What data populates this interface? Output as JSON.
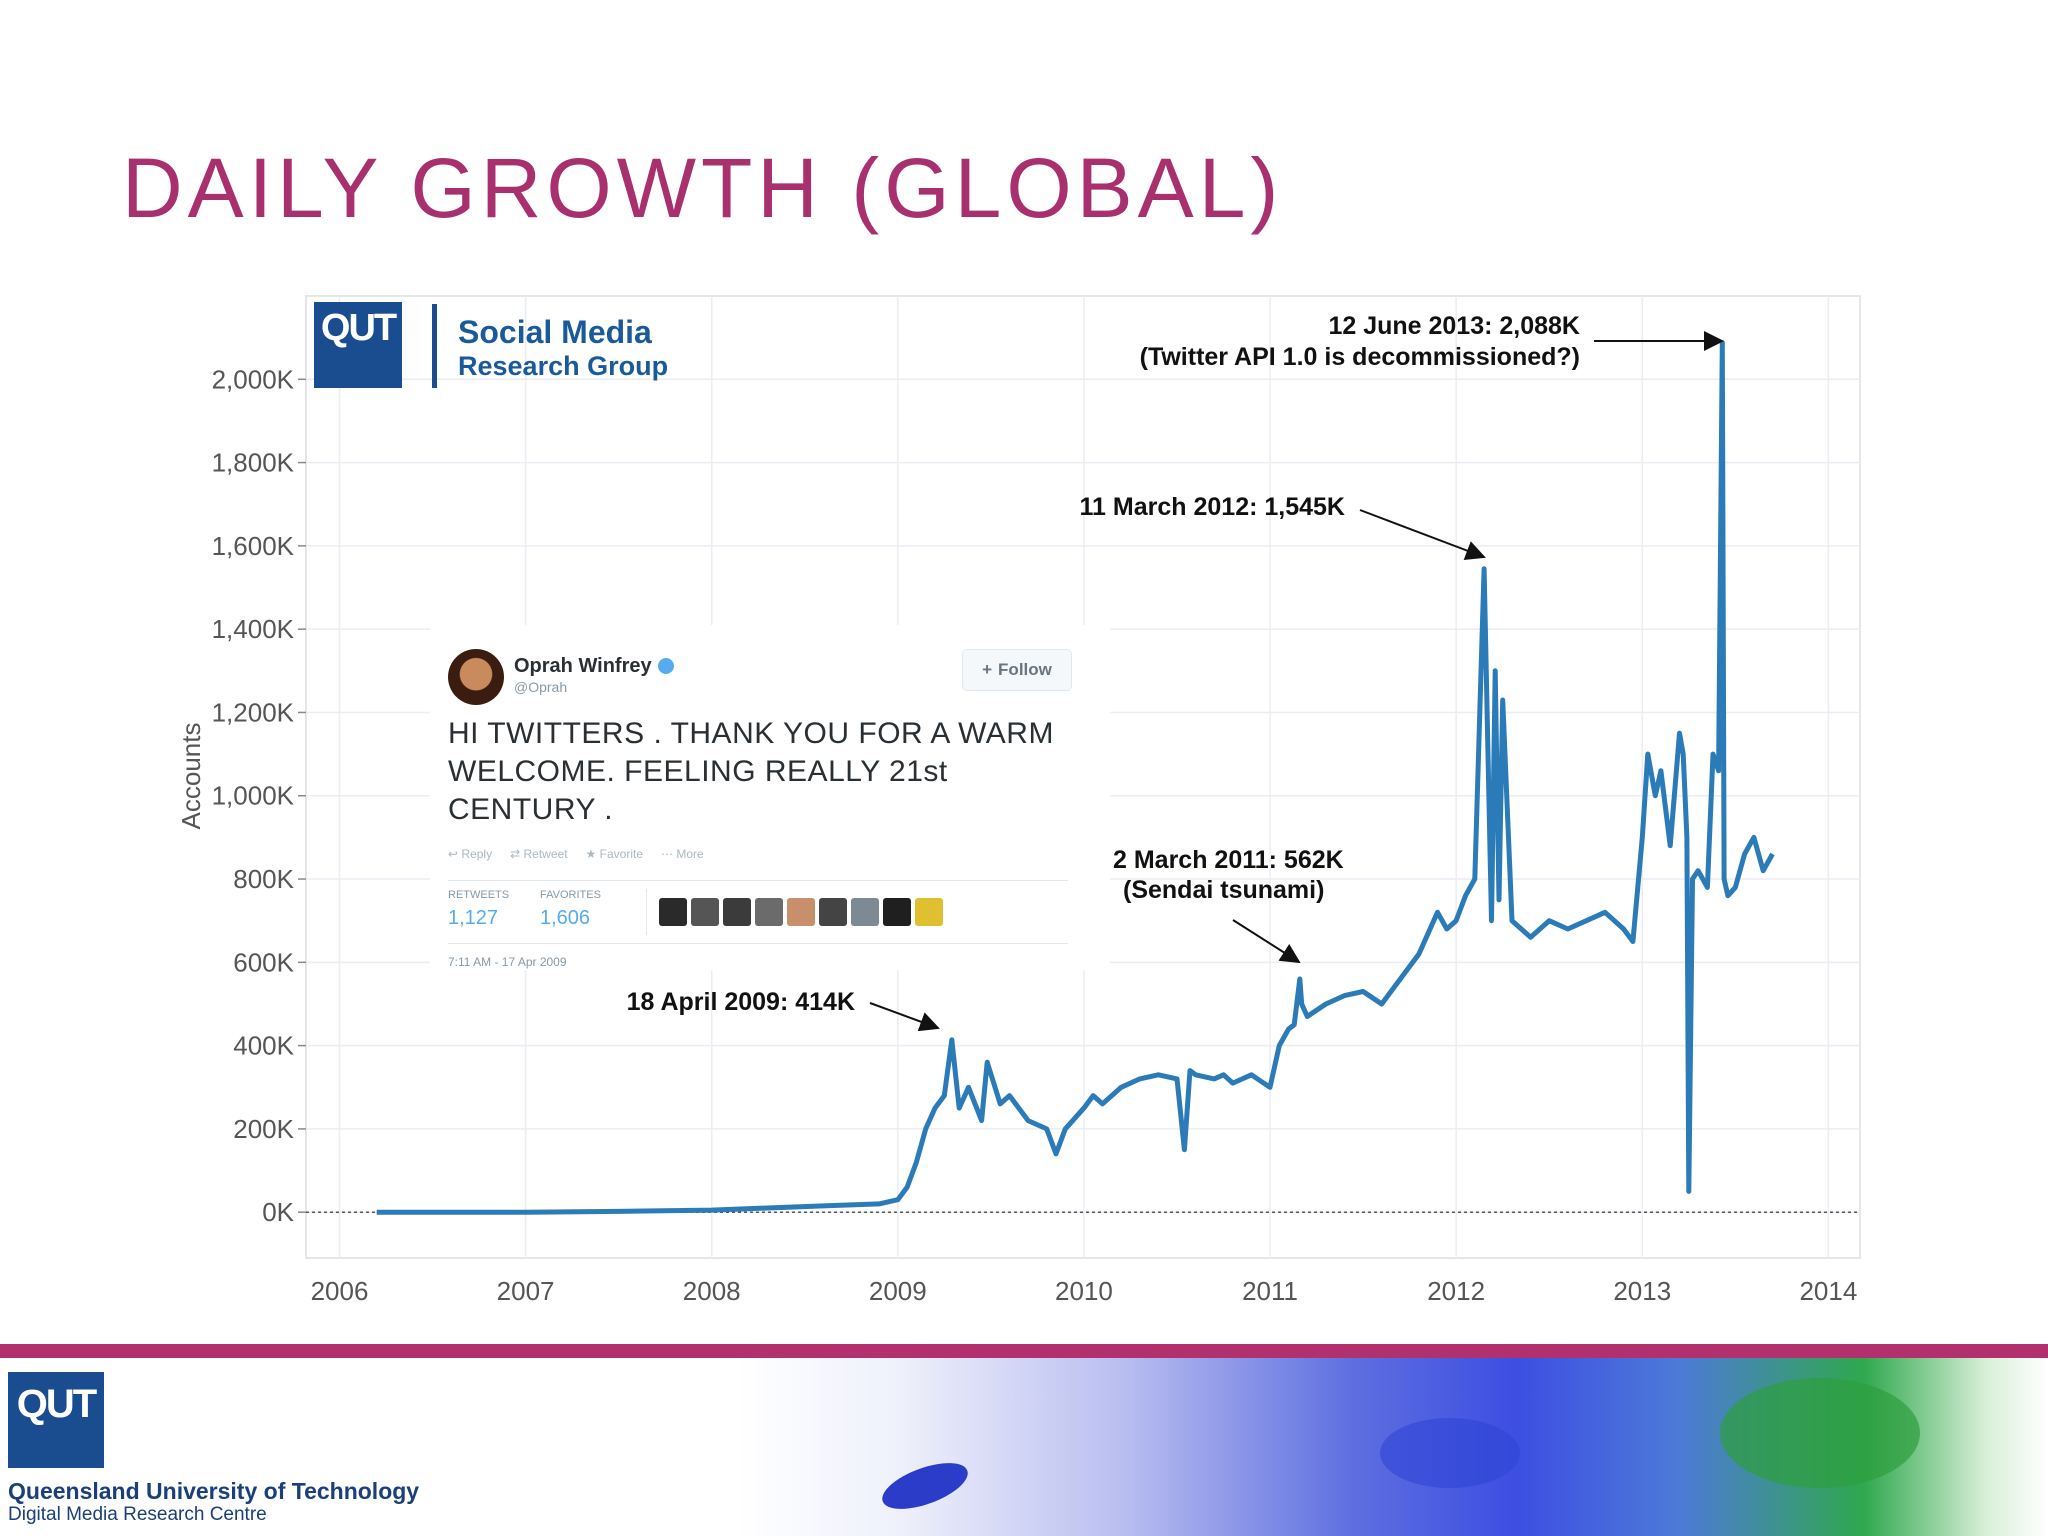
{
  "slide": {
    "title": "DAILY GROWTH (GLOBAL)"
  },
  "chart_data": {
    "type": "line",
    "ylabel": "Accounts",
    "xlabel": "",
    "ylim": [
      -110,
      2200
    ],
    "xlim": [
      2005.82,
      2014.17
    ],
    "y_ticks": [
      0,
      200,
      400,
      600,
      800,
      1000,
      1200,
      1400,
      1600,
      1800,
      2000
    ],
    "y_tick_labels": [
      "0K",
      "200K",
      "400K",
      "600K",
      "800K",
      "1,000K",
      "1,200K",
      "1,400K",
      "1,600K",
      "1,800K",
      "2,000K"
    ],
    "x_ticks": [
      2006,
      2007,
      2008,
      2009,
      2010,
      2011,
      2012,
      2013,
      2014
    ],
    "x_tick_labels": [
      "2006",
      "2007",
      "2008",
      "2009",
      "2010",
      "2011",
      "2012",
      "2013",
      "2014"
    ],
    "grid": true,
    "colors": {
      "line": "#2b7bb9"
    },
    "series": [
      {
        "values_note_unit": "thousand accounts per day",
        "x": [
          2006.2,
          2006.6,
          2007.0,
          2007.5,
          2008.0,
          2008.3,
          2008.6,
          2008.9,
          2009.0,
          2009.05,
          2009.1,
          2009.15,
          2009.2,
          2009.25,
          2009.29,
          2009.33,
          2009.38,
          2009.45,
          2009.48,
          2009.55,
          2009.6,
          2009.7,
          2009.8,
          2009.85,
          2009.9,
          2010.0,
          2010.05,
          2010.1,
          2010.2,
          2010.3,
          2010.4,
          2010.5,
          2010.54,
          2010.57,
          2010.6,
          2010.7,
          2010.75,
          2010.8,
          2010.9,
          2011.0,
          2011.05,
          2011.1,
          2011.13,
          2011.16,
          2011.17,
          2011.2,
          2011.3,
          2011.4,
          2011.5,
          2011.6,
          2011.7,
          2011.8,
          2011.9,
          2011.95,
          2012.0,
          2012.05,
          2012.1,
          2012.15,
          2012.19,
          2012.21,
          2012.23,
          2012.25,
          2012.3,
          2012.35,
          2012.4,
          2012.5,
          2012.6,
          2012.7,
          2012.8,
          2012.9,
          2012.95,
          2013.0,
          2013.03,
          2013.07,
          2013.1,
          2013.15,
          2013.2,
          2013.22,
          2013.24,
          2013.25,
          2013.27,
          2013.3,
          2013.35,
          2013.38,
          2013.41,
          2013.43,
          2013.44,
          2013.46,
          2013.5,
          2013.55,
          2013.6,
          2013.65,
          2013.7
        ],
        "values": [
          0,
          0,
          0,
          2,
          5,
          10,
          15,
          20,
          30,
          60,
          120,
          200,
          250,
          280,
          414,
          250,
          300,
          220,
          360,
          260,
          280,
          220,
          200,
          140,
          200,
          250,
          280,
          260,
          300,
          320,
          330,
          320,
          150,
          340,
          330,
          320,
          330,
          310,
          330,
          300,
          400,
          440,
          450,
          560,
          500,
          470,
          500,
          520,
          530,
          500,
          560,
          620,
          720,
          680,
          700,
          760,
          800,
          1545,
          700,
          1300,
          750,
          1230,
          700,
          680,
          660,
          700,
          680,
          700,
          720,
          680,
          650,
          900,
          1100,
          1000,
          1060,
          880,
          1150,
          1100,
          900,
          50,
          800,
          820,
          780,
          1100,
          1060,
          2088,
          800,
          760,
          780,
          860,
          900,
          820,
          860
        ]
      }
    ],
    "annotations": [
      {
        "text": "12 June 2013: 2,088K",
        "x": 2013.45,
        "y": 2088
      },
      {
        "text": "(Twitter API 1.0 is decommissioned?)",
        "x": 2013.45,
        "y": 2088
      },
      {
        "text": "11 March 2012: 1,545K",
        "x": 2012.19,
        "y": 1545
      },
      {
        "text": "2 March 2011: 562K",
        "x": 2011.17,
        "y": 562
      },
      {
        "text": "(Sendai tsunami)",
        "x": 2011.17,
        "y": 562
      },
      {
        "text": "18 April 2009: 414K",
        "x": 2009.29,
        "y": 414
      }
    ]
  },
  "logo_panel": {
    "mark": "QUT",
    "line1": "Social Media",
    "line2": "Research Group"
  },
  "tweet": {
    "name": "Oprah Winfrey",
    "handle": "@Oprah",
    "follow_label": "Follow",
    "text": "HI TWITTERS . THANK YOU FOR A WARM WELCOME. FEELING REALLY 21st CENTURY .",
    "actions": [
      "Reply",
      "Retweet",
      "Favorite",
      "More"
    ],
    "retweets_label": "RETWEETS",
    "retweets": "1,127",
    "favorites_label": "FAVORITES",
    "favorites": "1,606",
    "timestamp": "7:11 AM - 17 Apr 2009"
  },
  "footer": {
    "logo": "QUT",
    "university": "Queensland University of Technology",
    "centre": "Digital Media Research Centre",
    "accent": "#b3306f"
  }
}
